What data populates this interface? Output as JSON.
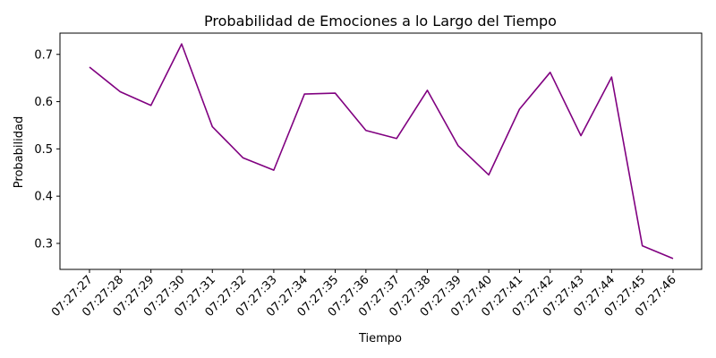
{
  "chart_data": {
    "type": "line",
    "title": "Probabilidad de Emociones a lo Largo del Tiempo",
    "xlabel": "Tiempo",
    "ylabel": "Probabilidad",
    "categories": [
      "07:27:27",
      "07:27:28",
      "07:27:29",
      "07:27:30",
      "07:27:31",
      "07:27:32",
      "07:27:33",
      "07:27:34",
      "07:27:35",
      "07:27:36",
      "07:27:37",
      "07:27:38",
      "07:27:39",
      "07:27:40",
      "07:27:41",
      "07:27:42",
      "07:27:43",
      "07:27:44",
      "07:27:45",
      "07:27:46"
    ],
    "series": [
      {
        "color": "#800080",
        "values": [
          0.673,
          0.621,
          0.592,
          0.722,
          0.547,
          0.481,
          0.455,
          0.616,
          0.618,
          0.539,
          0.522,
          0.624,
          0.507,
          0.445,
          0.584,
          0.662,
          0.528,
          0.652,
          0.295,
          0.268
        ]
      }
    ],
    "ylim": [
      0.245,
      0.745
    ],
    "yticks": [
      0.3,
      0.4,
      0.5,
      0.6,
      0.7
    ],
    "ytick_labels": [
      "0.3",
      "0.4",
      "0.5",
      "0.6",
      "0.7"
    ],
    "grid": false,
    "legend": "none"
  }
}
